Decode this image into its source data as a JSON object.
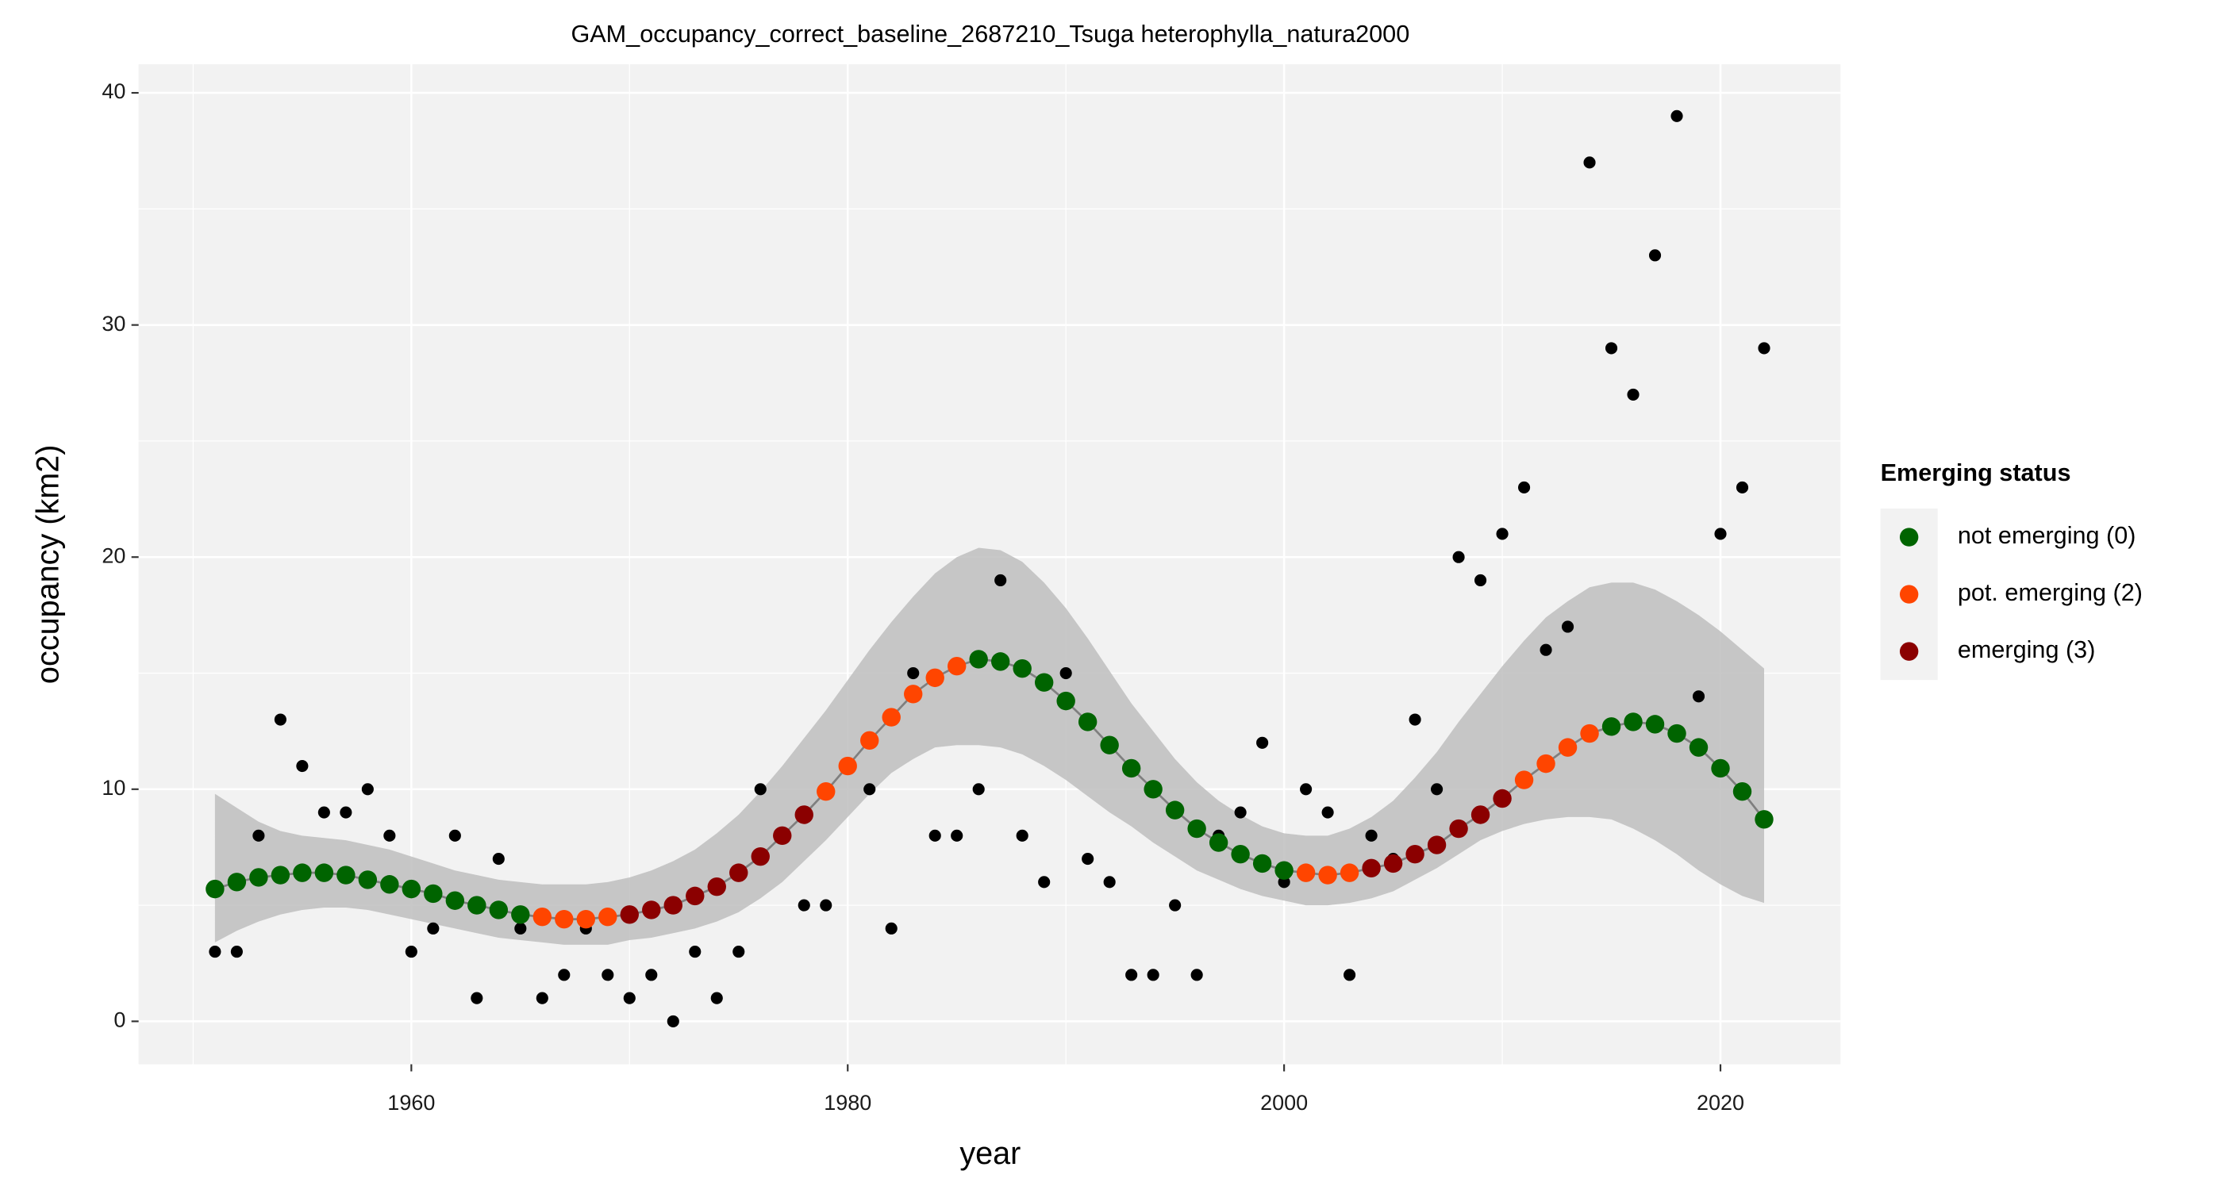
{
  "chart_data": {
    "type": "scatter",
    "title": "GAM_occupancy_correct_baseline_2687210_Tsuga heterophylla_natura2000",
    "xlabel": "year",
    "ylabel": "occupancy (km2)",
    "x": [
      1951,
      1952,
      1953,
      1954,
      1955,
      1956,
      1957,
      1958,
      1959,
      1960,
      1961,
      1962,
      1963,
      1964,
      1965,
      1966,
      1967,
      1968,
      1969,
      1970,
      1971,
      1972,
      1973,
      1974,
      1975,
      1976,
      1977,
      1978,
      1979,
      1980,
      1981,
      1982,
      1983,
      1984,
      1985,
      1986,
      1987,
      1988,
      1989,
      1990,
      1991,
      1992,
      1993,
      1994,
      1995,
      1996,
      1997,
      1998,
      1999,
      2000,
      2001,
      2002,
      2003,
      2004,
      2005,
      2006,
      2007,
      2008,
      2009,
      2010,
      2011,
      2012,
      2013,
      2014,
      2015,
      2016,
      2017,
      2018,
      2019,
      2020,
      2021,
      2022
    ],
    "observed": [
      3,
      3,
      8,
      13,
      11,
      9,
      9,
      10,
      8,
      3,
      4,
      8,
      1,
      7,
      4,
      1,
      2,
      4,
      2,
      1,
      2,
      0,
      3,
      1,
      3,
      10,
      8,
      5,
      5,
      11,
      10,
      4,
      15,
      8,
      8,
      10,
      19,
      8,
      6,
      15,
      7,
      6,
      2,
      2,
      5,
      2,
      8,
      9,
      12,
      6,
      10,
      9,
      2,
      8,
      7,
      13,
      10,
      20,
      19,
      21,
      23,
      16,
      17,
      37,
      29,
      27,
      33,
      39,
      14,
      21,
      23,
      29
    ],
    "fitted": [
      5.7,
      6.0,
      6.2,
      6.3,
      6.4,
      6.4,
      6.3,
      6.1,
      5.9,
      5.7,
      5.5,
      5.2,
      5.0,
      4.8,
      4.6,
      4.5,
      4.4,
      4.4,
      4.5,
      4.6,
      4.8,
      5.0,
      5.4,
      5.8,
      6.4,
      7.1,
      8.0,
      8.9,
      9.9,
      11.0,
      12.1,
      13.1,
      14.1,
      14.8,
      15.3,
      15.6,
      15.5,
      15.2,
      14.6,
      13.8,
      12.9,
      11.9,
      10.9,
      10.0,
      9.1,
      8.3,
      7.7,
      7.2,
      6.8,
      6.5,
      6.4,
      6.3,
      6.4,
      6.6,
      6.8,
      7.2,
      7.6,
      8.3,
      8.9,
      9.6,
      10.4,
      11.1,
      11.8,
      12.4,
      12.7,
      12.9,
      12.8,
      12.4,
      11.8,
      10.9,
      9.9,
      8.7
    ],
    "status": [
      0,
      0,
      0,
      0,
      0,
      0,
      0,
      0,
      0,
      0,
      0,
      0,
      0,
      0,
      0,
      2,
      2,
      2,
      2,
      3,
      3,
      3,
      3,
      3,
      3,
      3,
      3,
      3,
      2,
      2,
      2,
      2,
      2,
      2,
      2,
      0,
      0,
      0,
      0,
      0,
      0,
      0,
      0,
      0,
      0,
      0,
      0,
      0,
      0,
      0,
      2,
      2,
      2,
      3,
      3,
      3,
      3,
      3,
      3,
      3,
      2,
      2,
      2,
      2,
      0,
      0,
      0,
      0,
      0,
      0,
      0,
      0
    ],
    "ci_upper": [
      9.8,
      9.2,
      8.6,
      8.2,
      8.0,
      7.9,
      7.8,
      7.6,
      7.4,
      7.1,
      6.8,
      6.5,
      6.3,
      6.1,
      6.0,
      5.9,
      5.9,
      5.9,
      6.0,
      6.2,
      6.5,
      6.9,
      7.4,
      8.1,
      8.9,
      9.9,
      11.0,
      12.2,
      13.4,
      14.7,
      16.0,
      17.2,
      18.3,
      19.3,
      20.0,
      20.4,
      20.3,
      19.8,
      18.9,
      17.8,
      16.5,
      15.1,
      13.7,
      12.5,
      11.3,
      10.3,
      9.5,
      8.9,
      8.4,
      8.1,
      8.0,
      8.0,
      8.3,
      8.8,
      9.5,
      10.5,
      11.6,
      12.9,
      14.1,
      15.3,
      16.4,
      17.4,
      18.1,
      18.7,
      18.9,
      18.9,
      18.6,
      18.1,
      17.5,
      16.8,
      16.0,
      15.2
    ],
    "ci_lower": [
      3.4,
      3.9,
      4.3,
      4.6,
      4.8,
      4.9,
      4.9,
      4.8,
      4.6,
      4.4,
      4.2,
      4.0,
      3.8,
      3.6,
      3.5,
      3.4,
      3.3,
      3.3,
      3.3,
      3.5,
      3.6,
      3.8,
      4.0,
      4.3,
      4.7,
      5.3,
      6.0,
      6.9,
      7.8,
      8.8,
      9.8,
      10.7,
      11.3,
      11.8,
      11.9,
      11.9,
      11.8,
      11.5,
      11.0,
      10.4,
      9.7,
      9.0,
      8.4,
      7.7,
      7.1,
      6.5,
      6.1,
      5.7,
      5.4,
      5.2,
      5.0,
      5.0,
      5.1,
      5.3,
      5.6,
      6.1,
      6.6,
      7.2,
      7.8,
      8.2,
      8.5,
      8.7,
      8.8,
      8.8,
      8.7,
      8.3,
      7.8,
      7.2,
      6.5,
      5.9,
      5.4,
      5.1
    ],
    "observed_color": "#000000",
    "line_color": "#7f7f7f",
    "ribbon_color": "#bebebe",
    "xlim": [
      1947.5,
      2025.5
    ],
    "ylim": [
      -1.85,
      41.23
    ],
    "xticks": [
      1960,
      1980,
      2000,
      2020
    ],
    "yticks": [
      0,
      10,
      20,
      30,
      40
    ],
    "x_minor": [
      1950,
      1970,
      1990,
      2010
    ],
    "y_minor": [
      5,
      15,
      25,
      35
    ],
    "grid": true,
    "legend": {
      "title": "Emerging status",
      "position": "right",
      "entries": [
        {
          "value": 0,
          "label": "not emerging (0)",
          "color": "#006400"
        },
        {
          "value": 2,
          "label": "pot. emerging (2)",
          "color": "#ff4500"
        },
        {
          "value": 3,
          "label": "emerging (3)",
          "color": "#8b0000"
        }
      ]
    }
  }
}
